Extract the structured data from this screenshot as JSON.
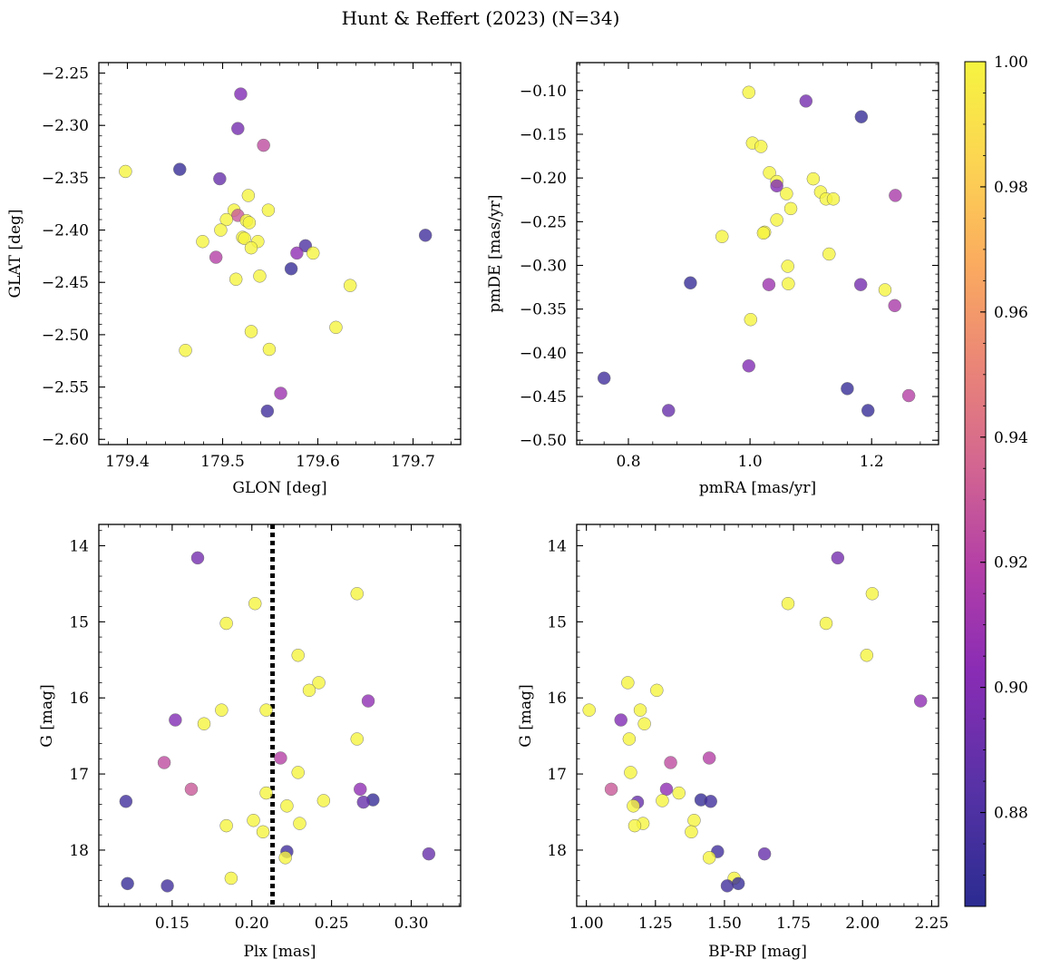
{
  "title": "Hunt & Reffert (2023) (N=34)",
  "colorbar": {
    "min": 0.865,
    "max": 1.0,
    "ticks": [
      0.88,
      0.9,
      0.92,
      0.94,
      0.96,
      0.98,
      1.0
    ],
    "tick_labels": [
      "0.88",
      "0.90",
      "0.92",
      "0.94",
      "0.96",
      "0.98",
      "1.00"
    ],
    "colormap": "plasma"
  },
  "chart_data": [
    {
      "type": "scatter",
      "id": "glon-glat",
      "xlabel": "GLON [deg]",
      "ylabel": "GLAT [deg]",
      "xlim": [
        179.37,
        179.75
      ],
      "ylim": [
        -2.605,
        -2.24
      ],
      "xticks": [
        179.4,
        179.5,
        179.6,
        179.7
      ],
      "xtick_labels": [
        "179.4",
        "179.5",
        "179.6",
        "179.7"
      ],
      "yticks": [
        -2.25,
        -2.3,
        -2.35,
        -2.4,
        -2.45,
        -2.5,
        -2.55,
        -2.6
      ],
      "ytick_labels": [
        "−2.25",
        "−2.30",
        "−2.35",
        "−2.40",
        "−2.45",
        "−2.50",
        "−2.55",
        "−2.60"
      ],
      "points": [
        {
          "x": 179.519,
          "y": -2.27,
          "c": 0.9
        },
        {
          "x": 179.516,
          "y": -2.303,
          "c": 0.895
        },
        {
          "x": 179.543,
          "y": -2.319,
          "c": 0.925
        },
        {
          "x": 179.398,
          "y": -2.344,
          "c": 1.0
        },
        {
          "x": 179.455,
          "y": -2.342,
          "c": 0.87
        },
        {
          "x": 179.497,
          "y": -2.351,
          "c": 0.89
        },
        {
          "x": 179.527,
          "y": -2.367,
          "c": 1.0
        },
        {
          "x": 179.548,
          "y": -2.381,
          "c": 1.0
        },
        {
          "x": 179.512,
          "y": -2.381,
          "c": 1.0
        },
        {
          "x": 179.516,
          "y": -2.386,
          "c": 0.93
        },
        {
          "x": 179.504,
          "y": -2.39,
          "c": 1.0
        },
        {
          "x": 179.525,
          "y": -2.391,
          "c": 1.0
        },
        {
          "x": 179.528,
          "y": -2.393,
          "c": 1.0
        },
        {
          "x": 179.498,
          "y": -2.4,
          "c": 1.0
        },
        {
          "x": 179.521,
          "y": -2.407,
          "c": 1.0
        },
        {
          "x": 179.523,
          "y": -2.408,
          "c": 1.0
        },
        {
          "x": 179.479,
          "y": -2.411,
          "c": 1.0
        },
        {
          "x": 179.537,
          "y": -2.411,
          "c": 1.0
        },
        {
          "x": 179.53,
          "y": -2.417,
          "c": 1.0
        },
        {
          "x": 179.587,
          "y": -2.415,
          "c": 0.88
        },
        {
          "x": 179.578,
          "y": -2.422,
          "c": 0.905
        },
        {
          "x": 179.595,
          "y": -2.422,
          "c": 1.0
        },
        {
          "x": 179.713,
          "y": -2.405,
          "c": 0.875
        },
        {
          "x": 179.493,
          "y": -2.426,
          "c": 0.92
        },
        {
          "x": 179.572,
          "y": -2.437,
          "c": 0.87
        },
        {
          "x": 179.539,
          "y": -2.444,
          "c": 1.0
        },
        {
          "x": 179.514,
          "y": -2.447,
          "c": 1.0
        },
        {
          "x": 179.634,
          "y": -2.453,
          "c": 1.0
        },
        {
          "x": 179.619,
          "y": -2.493,
          "c": 1.0
        },
        {
          "x": 179.53,
          "y": -2.497,
          "c": 1.0
        },
        {
          "x": 179.549,
          "y": -2.514,
          "c": 1.0
        },
        {
          "x": 179.461,
          "y": -2.515,
          "c": 1.0
        },
        {
          "x": 179.561,
          "y": -2.556,
          "c": 0.91
        },
        {
          "x": 179.547,
          "y": -2.573,
          "c": 0.875
        }
      ]
    },
    {
      "type": "scatter",
      "id": "pmra-pmde",
      "xlabel": "pmRA [mas/yr]",
      "ylabel": "pmDE [mas/yr]",
      "xlim": [
        0.715,
        1.31
      ],
      "ylim": [
        -0.505,
        -0.068
      ],
      "xticks": [
        0.8,
        1.0,
        1.2
      ],
      "xtick_labels": [
        "0.8",
        "1.0",
        "1.2"
      ],
      "yticks": [
        -0.1,
        -0.15,
        -0.2,
        -0.25,
        -0.3,
        -0.35,
        -0.4,
        -0.45,
        -0.5
      ],
      "ytick_labels": [
        "−0.10",
        "−0.15",
        "−0.20",
        "−0.25",
        "−0.30",
        "−0.35",
        "−0.40",
        "−0.45",
        "−0.50"
      ],
      "points": [
        {
          "x": 0.998,
          "y": -0.102,
          "c": 1.0
        },
        {
          "x": 1.092,
          "y": -0.112,
          "c": 0.895
        },
        {
          "x": 1.183,
          "y": -0.13,
          "c": 0.87
        },
        {
          "x": 1.004,
          "y": -0.16,
          "c": 1.0
        },
        {
          "x": 1.018,
          "y": -0.164,
          "c": 1.0
        },
        {
          "x": 1.032,
          "y": -0.194,
          "c": 1.0
        },
        {
          "x": 1.104,
          "y": -0.201,
          "c": 1.0
        },
        {
          "x": 1.044,
          "y": -0.204,
          "c": 1.0
        },
        {
          "x": 1.044,
          "y": -0.209,
          "c": 0.9
        },
        {
          "x": 1.116,
          "y": -0.216,
          "c": 1.0
        },
        {
          "x": 1.06,
          "y": -0.218,
          "c": 1.0
        },
        {
          "x": 1.239,
          "y": -0.22,
          "c": 0.915
        },
        {
          "x": 1.125,
          "y": -0.224,
          "c": 1.0
        },
        {
          "x": 1.137,
          "y": -0.224,
          "c": 1.0
        },
        {
          "x": 1.067,
          "y": -0.235,
          "c": 1.0
        },
        {
          "x": 1.044,
          "y": -0.248,
          "c": 1.0
        },
        {
          "x": 1.024,
          "y": -0.262,
          "c": 1.0
        },
        {
          "x": 1.022,
          "y": -0.263,
          "c": 1.0
        },
        {
          "x": 0.954,
          "y": -0.267,
          "c": 1.0
        },
        {
          "x": 1.13,
          "y": -0.287,
          "c": 1.0
        },
        {
          "x": 1.062,
          "y": -0.301,
          "c": 1.0
        },
        {
          "x": 0.902,
          "y": -0.32,
          "c": 0.87
        },
        {
          "x": 1.063,
          "y": -0.321,
          "c": 1.0
        },
        {
          "x": 1.031,
          "y": -0.322,
          "c": 0.91
        },
        {
          "x": 1.182,
          "y": -0.322,
          "c": 0.895
        },
        {
          "x": 1.222,
          "y": -0.328,
          "c": 1.0
        },
        {
          "x": 1.238,
          "y": -0.346,
          "c": 0.915
        },
        {
          "x": 1.001,
          "y": -0.362,
          "c": 1.0
        },
        {
          "x": 0.998,
          "y": -0.415,
          "c": 0.9
        },
        {
          "x": 0.76,
          "y": -0.429,
          "c": 0.875
        },
        {
          "x": 1.16,
          "y": -0.441,
          "c": 0.87
        },
        {
          "x": 1.261,
          "y": -0.449,
          "c": 0.92
        },
        {
          "x": 0.866,
          "y": -0.466,
          "c": 0.89
        },
        {
          "x": 1.194,
          "y": -0.466,
          "c": 0.87
        }
      ]
    },
    {
      "type": "scatter",
      "id": "plx-g",
      "xlabel": "Plx [mas]",
      "ylabel": "G [mag]",
      "xlim": [
        0.104,
        0.331
      ],
      "ylim": [
        18.74,
        13.72
      ],
      "y_inverted": true,
      "xticks": [
        0.15,
        0.2,
        0.25,
        0.3
      ],
      "xtick_labels": [
        "0.15",
        "0.20",
        "0.25",
        "0.30"
      ],
      "yticks": [
        14,
        15,
        16,
        17,
        18
      ],
      "ytick_labels": [
        "14",
        "15",
        "16",
        "17",
        "18"
      ],
      "vline": {
        "x": 0.213,
        "style": "dotted"
      },
      "points": [
        {
          "x": 0.166,
          "y": 14.16,
          "c": 0.895
        },
        {
          "x": 0.266,
          "y": 14.63,
          "c": 1.0
        },
        {
          "x": 0.202,
          "y": 14.76,
          "c": 1.0
        },
        {
          "x": 0.184,
          "y": 15.02,
          "c": 1.0
        },
        {
          "x": 0.229,
          "y": 15.44,
          "c": 1.0
        },
        {
          "x": 0.242,
          "y": 15.8,
          "c": 1.0
        },
        {
          "x": 0.236,
          "y": 15.9,
          "c": 1.0
        },
        {
          "x": 0.273,
          "y": 16.04,
          "c": 0.905
        },
        {
          "x": 0.181,
          "y": 16.16,
          "c": 1.0
        },
        {
          "x": 0.209,
          "y": 16.16,
          "c": 1.0
        },
        {
          "x": 0.152,
          "y": 16.29,
          "c": 0.9
        },
        {
          "x": 0.17,
          "y": 16.34,
          "c": 1.0
        },
        {
          "x": 0.266,
          "y": 16.54,
          "c": 1.0
        },
        {
          "x": 0.218,
          "y": 16.79,
          "c": 0.92
        },
        {
          "x": 0.145,
          "y": 16.85,
          "c": 0.925
        },
        {
          "x": 0.229,
          "y": 16.98,
          "c": 1.0
        },
        {
          "x": 0.162,
          "y": 17.2,
          "c": 0.93
        },
        {
          "x": 0.268,
          "y": 17.2,
          "c": 0.905
        },
        {
          "x": 0.209,
          "y": 17.25,
          "c": 1.0
        },
        {
          "x": 0.276,
          "y": 17.34,
          "c": 0.87
        },
        {
          "x": 0.27,
          "y": 17.37,
          "c": 0.89
        },
        {
          "x": 0.121,
          "y": 17.36,
          "c": 0.875
        },
        {
          "x": 0.245,
          "y": 17.35,
          "c": 1.0
        },
        {
          "x": 0.222,
          "y": 17.42,
          "c": 1.0
        },
        {
          "x": 0.23,
          "y": 17.65,
          "c": 1.0
        },
        {
          "x": 0.184,
          "y": 17.68,
          "c": 1.0
        },
        {
          "x": 0.201,
          "y": 17.61,
          "c": 1.0
        },
        {
          "x": 0.207,
          "y": 17.76,
          "c": 1.0
        },
        {
          "x": 0.222,
          "y": 18.02,
          "c": 0.875
        },
        {
          "x": 0.311,
          "y": 18.05,
          "c": 0.89
        },
        {
          "x": 0.221,
          "y": 18.1,
          "c": 1.0
        },
        {
          "x": 0.187,
          "y": 18.37,
          "c": 1.0
        },
        {
          "x": 0.122,
          "y": 18.44,
          "c": 0.87
        },
        {
          "x": 0.147,
          "y": 18.47,
          "c": 0.875
        }
      ]
    },
    {
      "type": "scatter",
      "id": "bprp-g",
      "xlabel": "BP-RP [mag]",
      "ylabel": "G [mag]",
      "xlim": [
        0.965,
        2.275
      ],
      "ylim": [
        18.74,
        13.72
      ],
      "y_inverted": true,
      "xticks": [
        1.0,
        1.25,
        1.5,
        1.75,
        2.0,
        2.25
      ],
      "xtick_labels": [
        "1.00",
        "1.25",
        "1.50",
        "1.75",
        "2.00",
        "2.25"
      ],
      "yticks": [
        14,
        15,
        16,
        17,
        18
      ],
      "ytick_labels": [
        "14",
        "15",
        "16",
        "17",
        "18"
      ],
      "points": [
        {
          "x": 1.91,
          "y": 14.16,
          "c": 0.895
        },
        {
          "x": 2.035,
          "y": 14.63,
          "c": 1.0
        },
        {
          "x": 1.73,
          "y": 14.76,
          "c": 1.0
        },
        {
          "x": 1.868,
          "y": 15.02,
          "c": 1.0
        },
        {
          "x": 2.015,
          "y": 15.44,
          "c": 1.0
        },
        {
          "x": 1.15,
          "y": 15.8,
          "c": 1.0
        },
        {
          "x": 1.255,
          "y": 15.9,
          "c": 1.0
        },
        {
          "x": 2.21,
          "y": 16.04,
          "c": 0.905
        },
        {
          "x": 1.01,
          "y": 16.16,
          "c": 1.0
        },
        {
          "x": 1.195,
          "y": 16.16,
          "c": 1.0
        },
        {
          "x": 1.125,
          "y": 16.29,
          "c": 0.9
        },
        {
          "x": 1.21,
          "y": 16.34,
          "c": 1.0
        },
        {
          "x": 1.155,
          "y": 16.54,
          "c": 1.0
        },
        {
          "x": 1.445,
          "y": 16.79,
          "c": 0.92
        },
        {
          "x": 1.305,
          "y": 16.85,
          "c": 0.925
        },
        {
          "x": 1.16,
          "y": 16.98,
          "c": 1.0
        },
        {
          "x": 1.09,
          "y": 17.2,
          "c": 0.93
        },
        {
          "x": 1.29,
          "y": 17.2,
          "c": 0.905
        },
        {
          "x": 1.335,
          "y": 17.25,
          "c": 1.0
        },
        {
          "x": 1.415,
          "y": 17.34,
          "c": 0.87
        },
        {
          "x": 1.185,
          "y": 17.37,
          "c": 0.89
        },
        {
          "x": 1.45,
          "y": 17.36,
          "c": 0.875
        },
        {
          "x": 1.275,
          "y": 17.35,
          "c": 1.0
        },
        {
          "x": 1.17,
          "y": 17.42,
          "c": 1.0
        },
        {
          "x": 1.205,
          "y": 17.65,
          "c": 1.0
        },
        {
          "x": 1.175,
          "y": 17.68,
          "c": 1.0
        },
        {
          "x": 1.39,
          "y": 17.61,
          "c": 1.0
        },
        {
          "x": 1.38,
          "y": 17.76,
          "c": 1.0
        },
        {
          "x": 1.475,
          "y": 18.02,
          "c": 0.875
        },
        {
          "x": 1.645,
          "y": 18.05,
          "c": 0.89
        },
        {
          "x": 1.445,
          "y": 18.1,
          "c": 1.0
        },
        {
          "x": 1.535,
          "y": 18.37,
          "c": 1.0
        },
        {
          "x": 1.55,
          "y": 18.44,
          "c": 0.87
        },
        {
          "x": 1.51,
          "y": 18.47,
          "c": 0.875
        }
      ]
    }
  ]
}
